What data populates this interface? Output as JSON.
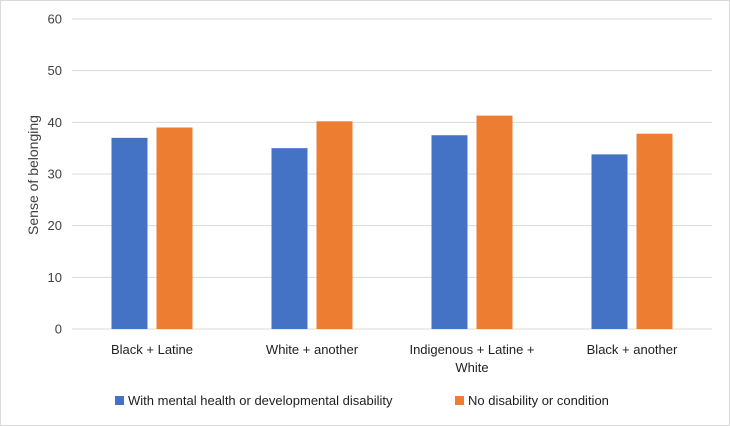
{
  "chart_data": {
    "type": "bar",
    "title": "",
    "xlabel": "",
    "ylabel": "Sense of belonging",
    "ylim": [
      0,
      60
    ],
    "yticks": [
      0,
      10,
      20,
      30,
      40,
      50,
      60
    ],
    "grid": true,
    "legend_position": "bottom",
    "categories": [
      [
        "Black + Latine"
      ],
      [
        "White + another"
      ],
      [
        "Indigenous + Latine +",
        "White"
      ],
      [
        "Black + another"
      ]
    ],
    "series": [
      {
        "name": "With mental health or developmental disability",
        "color": "#4472C4",
        "values": [
          37.0,
          35.0,
          37.5,
          33.8
        ]
      },
      {
        "name": "No disability or condition",
        "color": "#ED7D31",
        "values": [
          39.0,
          40.2,
          41.3,
          37.8
        ]
      }
    ]
  }
}
